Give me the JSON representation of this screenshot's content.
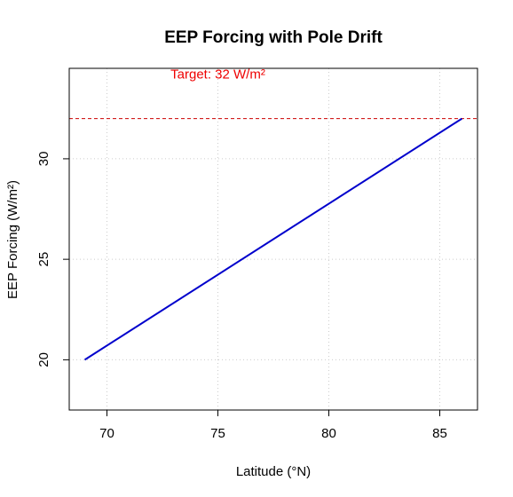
{
  "chart_data": {
    "type": "line",
    "title": "EEP Forcing with Pole Drift",
    "xlabel": "Latitude (°N)",
    "ylabel": "EEP Forcing (W/m²)",
    "xlim": [
      68.3,
      86.7
    ],
    "ylim": [
      17.5,
      34.5
    ],
    "x_ticks": [
      70,
      75,
      80,
      85
    ],
    "y_ticks": [
      20,
      25,
      30
    ],
    "grid": true,
    "series": [
      {
        "color": "#0000cc",
        "x": [
          69,
          86
        ],
        "y": [
          20,
          32
        ]
      }
    ],
    "reference_line": {
      "y": 32,
      "style": "dashed",
      "color": "#cc0000"
    },
    "annotations": [
      {
        "text": "Target: 32 W/m²",
        "x": 75,
        "y": 34,
        "color": "#ee0000"
      }
    ]
  }
}
